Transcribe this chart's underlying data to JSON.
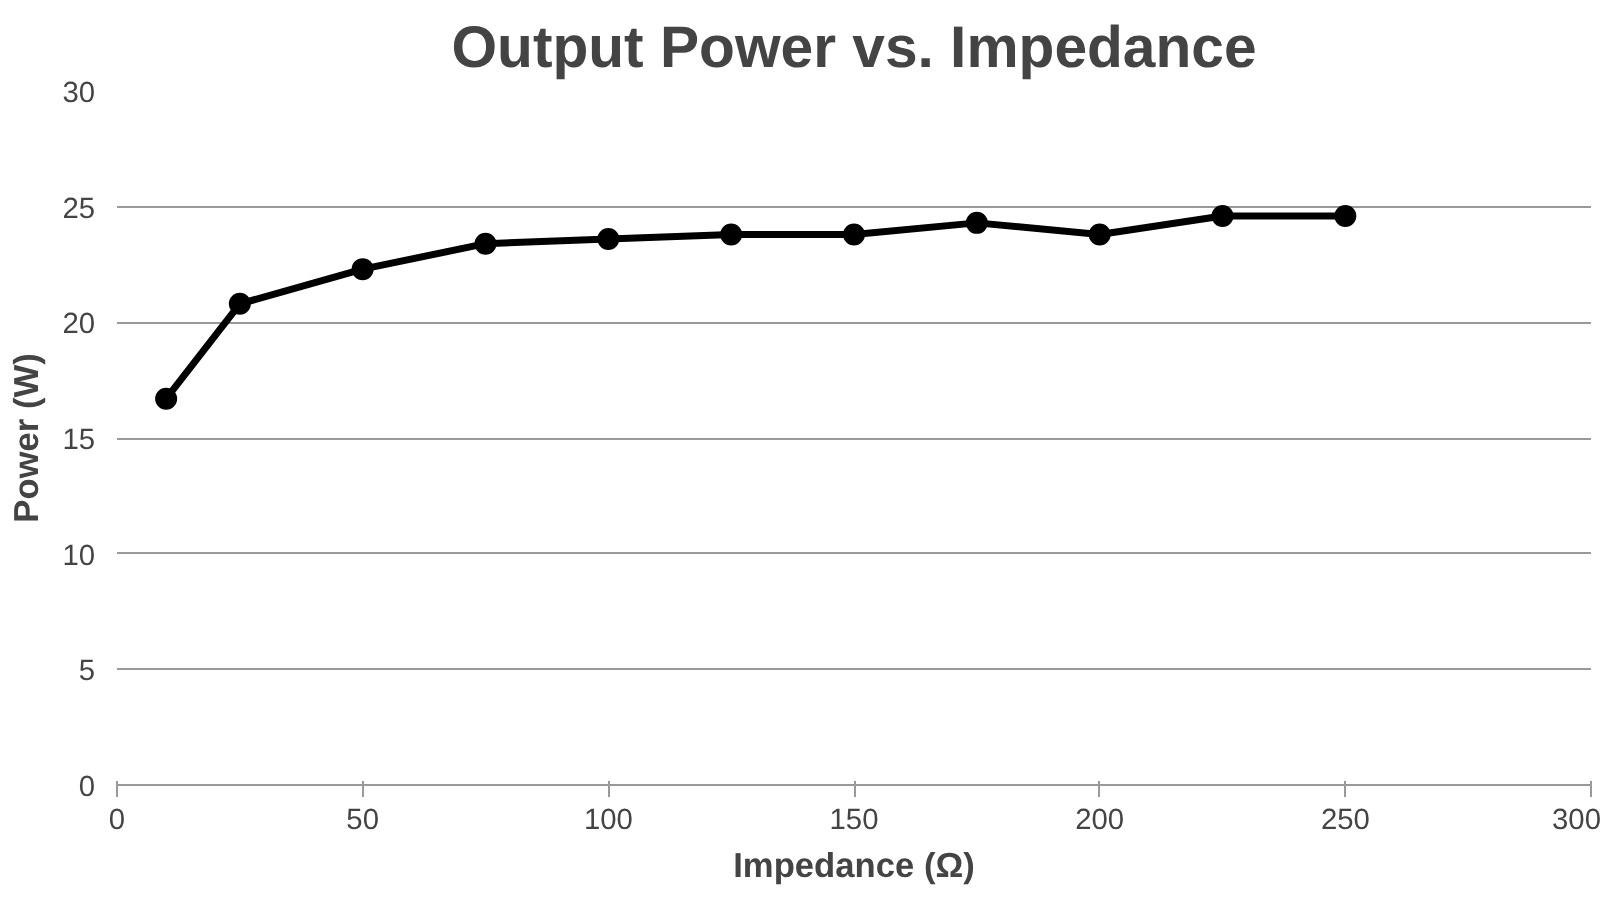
{
  "chart_data": {
    "type": "line",
    "title": "Output Power vs. Impedance",
    "xlabel": "Impedance (Ω)",
    "ylabel": "Power (W)",
    "x": [
      10,
      25,
      50,
      75,
      100,
      125,
      150,
      175,
      200,
      225,
      250
    ],
    "series": [
      {
        "color": "#000000",
        "values": [
          16.7,
          20.8,
          22.3,
          23.4,
          23.6,
          23.8,
          23.8,
          24.3,
          23.8,
          24.6,
          24.6
        ]
      }
    ],
    "xlim": [
      0,
      300
    ],
    "ylim": [
      0,
      30
    ],
    "xticks": [
      0,
      50,
      100,
      150,
      200,
      250,
      300
    ],
    "yticks": [
      0,
      5,
      10,
      15,
      20,
      25,
      30
    ],
    "grid": "y",
    "marker": "circle",
    "line_style": "solid"
  }
}
